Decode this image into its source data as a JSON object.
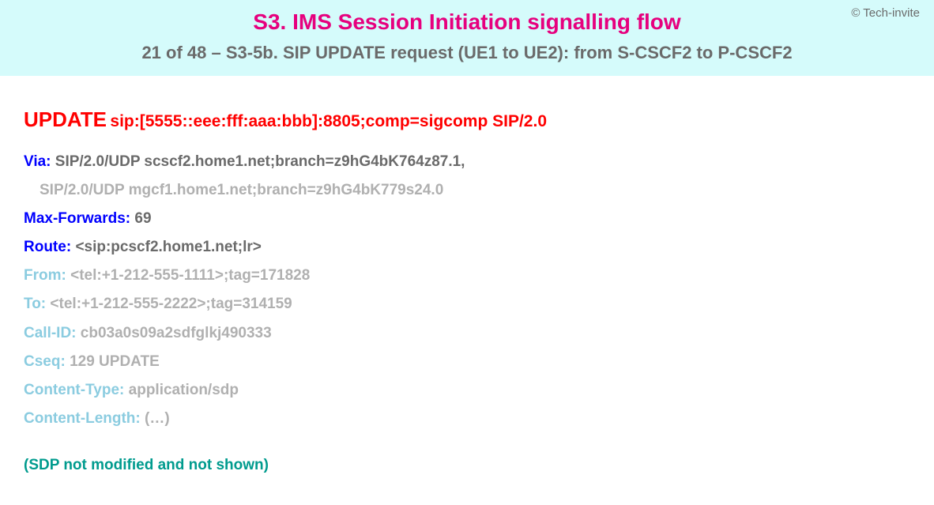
{
  "copyright": "© Tech-invite",
  "title": "S3. IMS Session Initiation signalling flow",
  "subtitle": "21 of 48 – S3-5b. SIP UPDATE request (UE1 to UE2): from S-CSCF2 to P-CSCF2",
  "request": {
    "method": "UPDATE",
    "uri": "sip:[5555::eee:fff:aaa:bbb]:8805;comp=sigcomp SIP/2.0"
  },
  "headers": [
    {
      "name": "Via",
      "value": "SIP/2.0/UDP scscf2.home1.net;branch=z9hG4bK764z87.1,",
      "style": "active",
      "cont": "SIP/2.0/UDP mgcf1.home1.net;branch=z9hG4bK779s24.0"
    },
    {
      "name": "Max-Forwards",
      "value": "69",
      "style": "active"
    },
    {
      "name": "Route",
      "value": "<sip:pcscf2.home1.net;lr>",
      "style": "active"
    },
    {
      "name": "From",
      "value": "<tel:+1-212-555-1111>;tag=171828",
      "style": "dim"
    },
    {
      "name": "To",
      "value": "<tel:+1-212-555-2222>;tag=314159",
      "style": "dim"
    },
    {
      "name": "Call-ID",
      "value": "cb03a0s09a2sdfglkj490333",
      "style": "dim"
    },
    {
      "name": "Cseq",
      "value": "129 UPDATE",
      "style": "dim"
    },
    {
      "name": "Content-Type",
      "value": "application/sdp",
      "style": "dim"
    },
    {
      "name": "Content-Length",
      "value": "(…)",
      "style": "dim"
    }
  ],
  "sdp_note": "(SDP not modified and not shown)",
  "colors": {
    "header_bg": "#d5fbfb",
    "title": "#e6007e",
    "subtitle": "#6a6a6a",
    "method": "#ff0000",
    "active_name": "#0000ff",
    "active_val": "#6a6a6a",
    "dim_name": "#8bcce0",
    "dim_val": "#b0b0b0",
    "sdp_note": "#009b8e"
  }
}
